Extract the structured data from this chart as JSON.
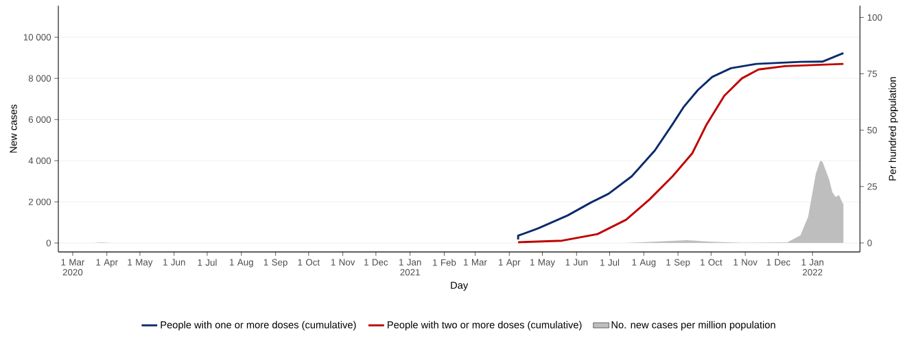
{
  "chart_data": {
    "type": "line",
    "xlabel": "Day",
    "ylabel": "New cases",
    "y2label": "Per hundred population",
    "xlim": [
      "2020-02-17",
      "2022-02-13"
    ],
    "ylim": [
      -433,
      11530
    ],
    "y2lim": [
      -4,
      105.2
    ],
    "xticks": [
      {
        "value": "2020-03-01",
        "label": "1 Mar 2020"
      },
      {
        "value": "2020-04-01",
        "label": "1 Apr"
      },
      {
        "value": "2020-05-01",
        "label": "1 May"
      },
      {
        "value": "2020-06-01",
        "label": "1 Jun"
      },
      {
        "value": "2020-07-01",
        "label": "1 Jul"
      },
      {
        "value": "2020-08-01",
        "label": "1 Aug"
      },
      {
        "value": "2020-09-01",
        "label": "1 Sep"
      },
      {
        "value": "2020-10-01",
        "label": "1 Oct"
      },
      {
        "value": "2020-11-01",
        "label": "1 Nov"
      },
      {
        "value": "2020-12-01",
        "label": "1 Dec"
      },
      {
        "value": "2021-01-01",
        "label": "1 Jan 2021"
      },
      {
        "value": "2021-02-01",
        "label": "1 Feb"
      },
      {
        "value": "2021-03-01",
        "label": "1 Mar"
      },
      {
        "value": "2021-04-01",
        "label": "1 Apr"
      },
      {
        "value": "2021-05-01",
        "label": "1 May"
      },
      {
        "value": "2021-06-01",
        "label": "1 Jun"
      },
      {
        "value": "2021-07-01",
        "label": "1 Jul"
      },
      {
        "value": "2021-08-01",
        "label": "1 Aug"
      },
      {
        "value": "2021-09-01",
        "label": "1 Sep"
      },
      {
        "value": "2021-10-01",
        "label": "1 Oct"
      },
      {
        "value": "2021-11-01",
        "label": "1 Nov"
      },
      {
        "value": "2021-12-01",
        "label": "1 Dec"
      },
      {
        "value": "2022-01-01",
        "label": "1 Jan 2022"
      }
    ],
    "yticks": [
      0,
      {
        "value": 2000,
        "label": "2 000"
      },
      {
        "value": 4000,
        "label": "4 000"
      },
      {
        "value": 6000,
        "label": "6 000"
      },
      {
        "value": 8000,
        "label": "8 000"
      },
      {
        "value": 10000,
        "label": "10 000"
      }
    ],
    "y2ticks": [
      0,
      25,
      50,
      75,
      100
    ],
    "grid": "y",
    "legend": "bottom",
    "series": [
      {
        "name": "People with one or more doses (cumulative)",
        "axis": "y2",
        "color": "#0b2a6c",
        "x": [
          "2021-04-09",
          "2021-04-09",
          "2021-04-27",
          "2021-05-24",
          "2021-06-14",
          "2021-06-30",
          "2021-07-21",
          "2021-08-11",
          "2021-08-27",
          "2021-09-06",
          "2021-09-19",
          "2021-10-02",
          "2021-10-19",
          "2021-11-11",
          "2021-12-21",
          "2022-01-10",
          "2022-01-29"
        ],
        "values": [
          1.5,
          3.2,
          6.4,
          12.2,
          17.9,
          21.8,
          29.5,
          41,
          52.6,
          60.2,
          67.8,
          73.6,
          77.5,
          79.4,
          80.3,
          80.4,
          84.2
        ]
      },
      {
        "name": "People with two or more doses (cumulative)",
        "axis": "y2",
        "color": "#c00000",
        "x": [
          "2021-04-09",
          "2021-05-19",
          "2021-06-20",
          "2021-07-16",
          "2021-08-06",
          "2021-08-27",
          "2021-09-14",
          "2021-09-27",
          "2021-10-13",
          "2021-10-29",
          "2021-11-13",
          "2021-12-07",
          "2022-01-29"
        ],
        "values": [
          0.3,
          1.0,
          3.9,
          10.3,
          19.2,
          29.5,
          39.8,
          52.6,
          65.3,
          73,
          76.9,
          78.4,
          79.4
        ]
      },
      {
        "name": "No. new cases per million population",
        "type": "area",
        "axis": "y",
        "color": "#bebebe",
        "x": [
          "2020-03-01",
          "2020-03-20",
          "2020-03-27",
          "2020-04-05",
          "2021-07-15",
          "2021-08-10",
          "2021-09-09",
          "2021-10-01",
          "2021-10-29",
          "2021-12-09",
          "2021-12-21",
          "2021-12-28",
          "2022-01-04",
          "2022-01-08",
          "2022-01-10",
          "2022-01-16",
          "2022-01-19",
          "2022-01-22",
          "2022-01-25",
          "2022-01-28",
          "2022-01-29"
        ],
        "values": [
          0,
          0,
          25,
          0,
          0,
          60,
          140,
          60,
          10,
          30,
          370,
          1270,
          3370,
          4000,
          3950,
          3100,
          2460,
          2240,
          2330,
          1970,
          1900
        ]
      }
    ]
  }
}
